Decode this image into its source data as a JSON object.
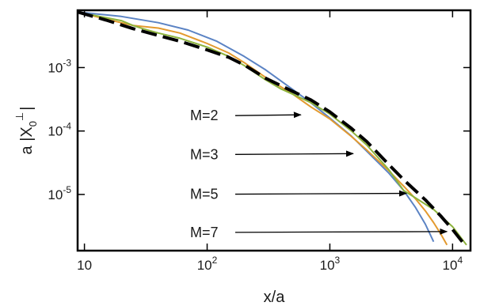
{
  "chart_data": {
    "type": "line",
    "xlabel": "x/a",
    "ylabel_prefix": "a |X",
    "ylabel_sub": "0",
    "ylabel_sup": "⊥",
    "ylabel_suffix": "|",
    "xscale": "log",
    "yscale": "log",
    "xlim": [
      8.8,
      14000
    ],
    "ylim": [
      1.3e-06,
      0.008
    ],
    "grid": false,
    "x_ticks": [
      {
        "value": 10,
        "base": "10",
        "exp": ""
      },
      {
        "value": 100,
        "base": "10",
        "exp": "2"
      },
      {
        "value": 1000,
        "base": "10",
        "exp": "3"
      },
      {
        "value": 10000,
        "base": "10",
        "exp": "4"
      }
    ],
    "y_ticks": [
      {
        "value": 0.001,
        "base": "10",
        "exp": "-3"
      },
      {
        "value": 0.0001,
        "base": "10",
        "exp": "-4"
      },
      {
        "value": 1e-05,
        "base": "10",
        "exp": "-5"
      }
    ],
    "annotations": [
      {
        "text": "M=2",
        "arrow_to": [
          580,
          0.00018
        ]
      },
      {
        "text": "M=3",
        "arrow_to": [
          1550,
          4.4e-05
        ]
      },
      {
        "text": "M=5",
        "arrow_to": [
          4200,
          1.04e-05
        ]
      },
      {
        "text": "M=7",
        "arrow_to": [
          9000,
          2.6e-06
        ]
      }
    ],
    "series": [
      {
        "color": "#5b83c4",
        "dash": false,
        "width": 2,
        "x": [
          8.8,
          20,
          40,
          70,
          120,
          200,
          300,
          500,
          700,
          1000,
          1500,
          2000,
          3000,
          4000,
          5000,
          6000,
          7000
        ],
        "y": [
          0.0075,
          0.0064,
          0.0051,
          0.0039,
          0.0026,
          0.0015,
          0.00092,
          0.00045,
          0.00028,
          0.00016,
          8.3e-05,
          4.8e-05,
          2.2e-05,
          1.15e-05,
          6.2e-06,
          3.4e-06,
          1.8e-06
        ]
      },
      {
        "color": "#e39a2f",
        "dash": false,
        "width": 2,
        "x": [
          8.8,
          15,
          25,
          40,
          60,
          100,
          150,
          200,
          300,
          500,
          700,
          1000,
          1500,
          2000,
          3000,
          4000,
          5000,
          6000,
          7000,
          8000,
          9000
        ],
        "y": [
          0.0075,
          0.0058,
          0.0046,
          0.0042,
          0.0035,
          0.0024,
          0.0017,
          0.0012,
          0.0007,
          0.00038,
          0.00024,
          0.000155,
          8.2e-05,
          5e-05,
          2.4e-05,
          1.35e-05,
          8.5e-06,
          5.5e-06,
          3.6e-06,
          2.4e-06,
          1.6e-06
        ]
      },
      {
        "color": "#8db33c",
        "dash": false,
        "width": 2,
        "x": [
          8.8,
          15,
          20,
          25,
          30,
          40,
          60,
          100,
          150,
          200,
          300,
          400,
          500,
          700,
          1000,
          1500,
          2000,
          3000,
          4000,
          5000,
          7000,
          10000,
          13000
        ],
        "y": [
          0.0075,
          0.0061,
          0.0055,
          0.0046,
          0.0041,
          0.0035,
          0.0029,
          0.0021,
          0.0015,
          0.00108,
          0.00064,
          0.00046,
          0.00038,
          0.00028,
          0.000185,
          0.0001,
          6e-05,
          2.5e-05,
          1.15e-05,
          8.8e-06,
          5.8e-06,
          3.1e-06,
          1.6e-06
        ]
      },
      {
        "color": "#000000",
        "dash": true,
        "width": 4,
        "x": [
          8.8,
          15,
          25,
          40,
          60,
          100,
          150,
          200,
          300,
          500,
          700,
          1000,
          1500,
          2000,
          3000,
          4000,
          6000,
          8000,
          10000,
          12000
        ],
        "y": [
          0.0075,
          0.0056,
          0.0041,
          0.0032,
          0.0026,
          0.0019,
          0.00145,
          0.0011,
          0.00068,
          0.00042,
          0.00031,
          0.0002,
          0.00011,
          6.8e-05,
          3e-05,
          1.7e-05,
          8.2e-06,
          4.6e-06,
          2.8e-06,
          1.8e-06
        ]
      }
    ]
  }
}
